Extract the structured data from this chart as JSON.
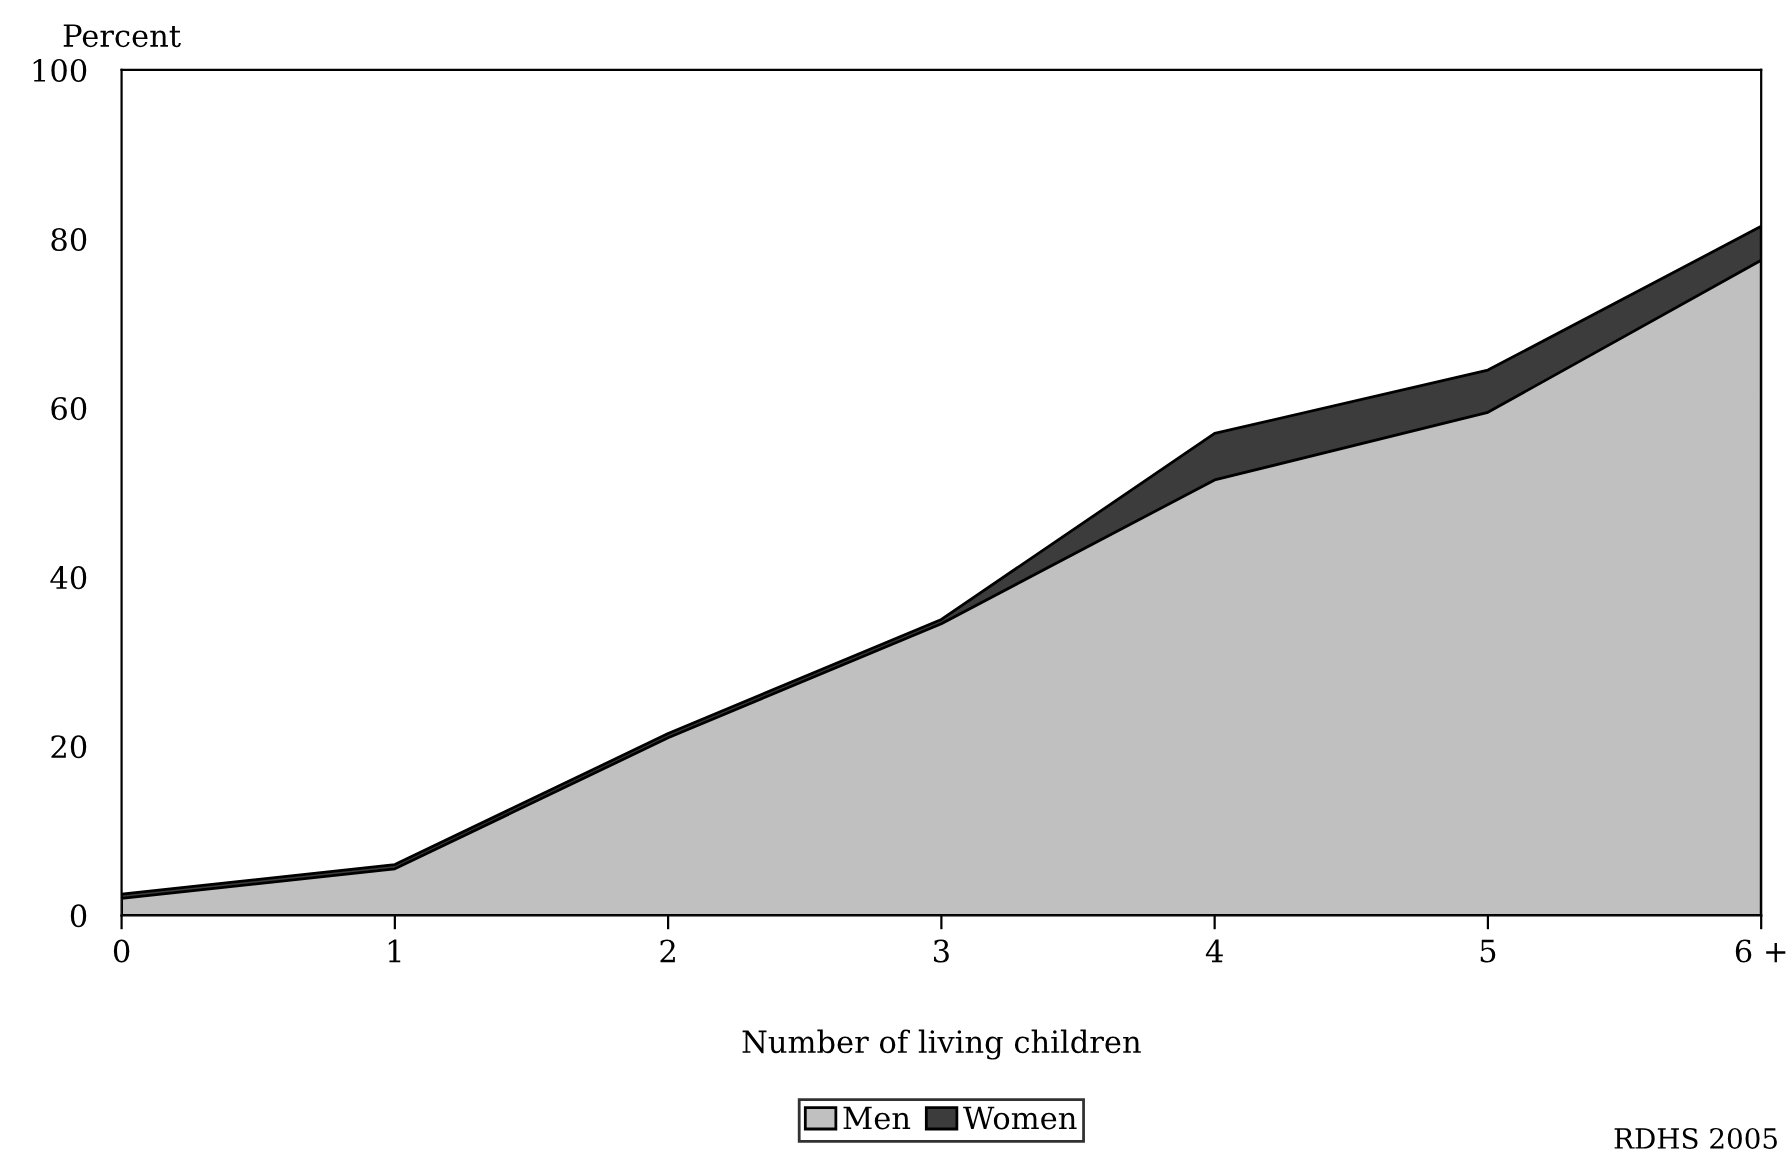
{
  "chart_data": {
    "type": "area",
    "xlabel": "Number of living children",
    "ylabel": "Percent",
    "categories": [
      "0",
      "1",
      "2",
      "3",
      "4",
      "5",
      "6 +"
    ],
    "series": [
      {
        "name": "Men",
        "color": "#c0c0c0",
        "values": [
          2,
          5.5,
          21,
          34.5,
          51.5,
          59.5,
          77.5
        ]
      },
      {
        "name": "Women",
        "color": "#3c3c3c",
        "values": [
          2.5,
          6,
          21.5,
          35,
          57,
          64.5,
          81.5
        ]
      }
    ],
    "ylim": [
      0,
      100
    ],
    "yticks": [
      0,
      20,
      40,
      60,
      80,
      100
    ],
    "grid": false,
    "legend": "bottom",
    "annotations": [
      "RDHS 2005"
    ]
  }
}
